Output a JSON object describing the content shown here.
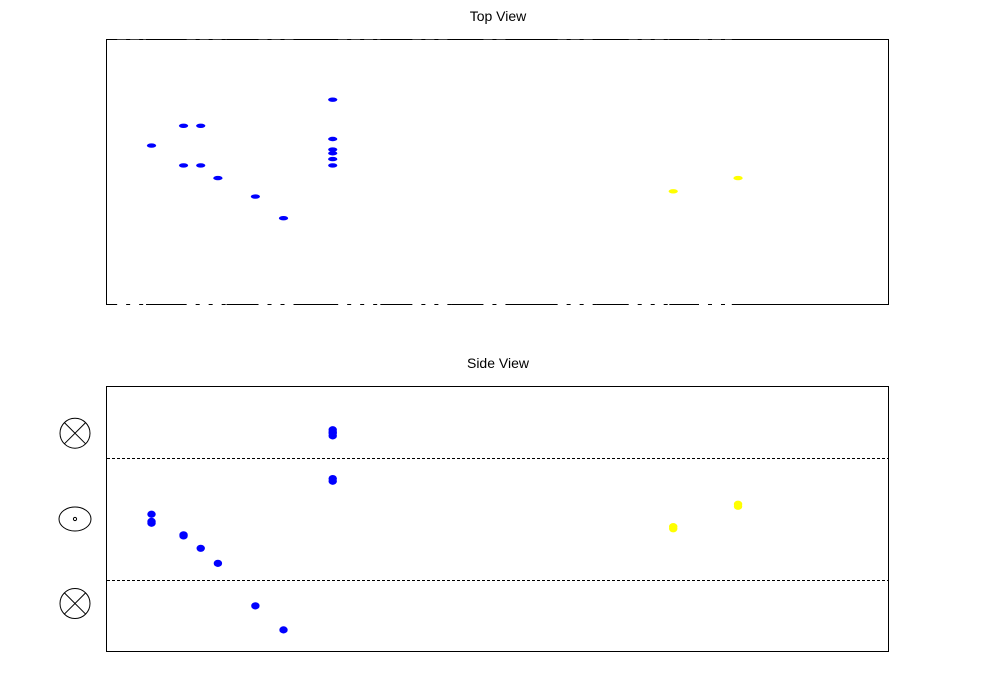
{
  "chart_data": [
    {
      "type": "scatter",
      "title": "Top View",
      "xlabel": "",
      "ylabel": "",
      "xlim": [
        0,
        1
      ],
      "ylim": [
        0,
        1
      ],
      "grid": false,
      "legend": "none",
      "colors": {
        "blue": "#0000ff",
        "yellow": "#ffff00",
        "frame": "#000000"
      },
      "marker": "horizontal-dash",
      "series": [
        {
          "color": "blue",
          "points": [
            {
              "x": 0.057,
              "y": 0.6
            },
            {
              "x": 0.098,
              "y": 0.675
            },
            {
              "x": 0.12,
              "y": 0.675
            },
            {
              "x": 0.098,
              "y": 0.525
            },
            {
              "x": 0.12,
              "y": 0.525
            },
            {
              "x": 0.142,
              "y": 0.477
            },
            {
              "x": 0.19,
              "y": 0.407
            },
            {
              "x": 0.226,
              "y": 0.325
            },
            {
              "x": 0.289,
              "y": 0.774
            },
            {
              "x": 0.289,
              "y": 0.625
            },
            {
              "x": 0.289,
              "y": 0.585
            },
            {
              "x": 0.289,
              "y": 0.571
            },
            {
              "x": 0.289,
              "y": 0.549
            },
            {
              "x": 0.289,
              "y": 0.525
            }
          ]
        },
        {
          "color": "yellow",
          "points": [
            {
              "x": 0.725,
              "y": 0.427
            },
            {
              "x": 0.808,
              "y": 0.477
            }
          ]
        }
      ],
      "boundary_dashes": [
        [
          0.013,
          0.05
        ],
        [
          0.102,
          0.153
        ],
        [
          0.194,
          0.24
        ],
        [
          0.296,
          0.35
        ],
        [
          0.391,
          0.441
        ],
        [
          0.482,
          0.514
        ],
        [
          0.577,
          0.627
        ],
        [
          0.668,
          0.72
        ],
        [
          0.758,
          0.8
        ]
      ]
    },
    {
      "type": "scatter",
      "title": "Side View",
      "xlabel": "",
      "ylabel": "",
      "xlim": [
        0,
        1
      ],
      "ylim": [
        0,
        1
      ],
      "grid": false,
      "legend": "none",
      "colors": {
        "blue": "#0000ff",
        "yellow": "#ffff00",
        "frame": "#000000"
      },
      "marker": "dot",
      "horizontal_dashed_lines": [
        0.73,
        0.27
      ],
      "field_symbols": [
        {
          "icon": "cross-in-circle-icon",
          "y": 0.825
        },
        {
          "icon": "dot-in-circle-icon",
          "y": 0.5
        },
        {
          "icon": "cross-in-circle-icon",
          "y": 0.18
        }
      ],
      "series": [
        {
          "color": "blue",
          "points": [
            {
              "x": 0.057,
              "y": 0.518
            },
            {
              "x": 0.057,
              "y": 0.491
            },
            {
              "x": 0.057,
              "y": 0.484
            },
            {
              "x": 0.098,
              "y": 0.44
            },
            {
              "x": 0.098,
              "y": 0.436
            },
            {
              "x": 0.12,
              "y": 0.389
            },
            {
              "x": 0.142,
              "y": 0.332
            },
            {
              "x": 0.19,
              "y": 0.171
            },
            {
              "x": 0.226,
              "y": 0.08
            },
            {
              "x": 0.289,
              "y": 0.838
            },
            {
              "x": 0.289,
              "y": 0.83
            },
            {
              "x": 0.289,
              "y": 0.825
            },
            {
              "x": 0.289,
              "y": 0.815
            },
            {
              "x": 0.289,
              "y": 0.653
            },
            {
              "x": 0.289,
              "y": 0.643
            }
          ]
        },
        {
          "color": "yellow",
          "points": [
            {
              "x": 0.725,
              "y": 0.471
            },
            {
              "x": 0.725,
              "y": 0.463
            },
            {
              "x": 0.808,
              "y": 0.556
            },
            {
              "x": 0.808,
              "y": 0.548
            }
          ]
        }
      ]
    }
  ]
}
